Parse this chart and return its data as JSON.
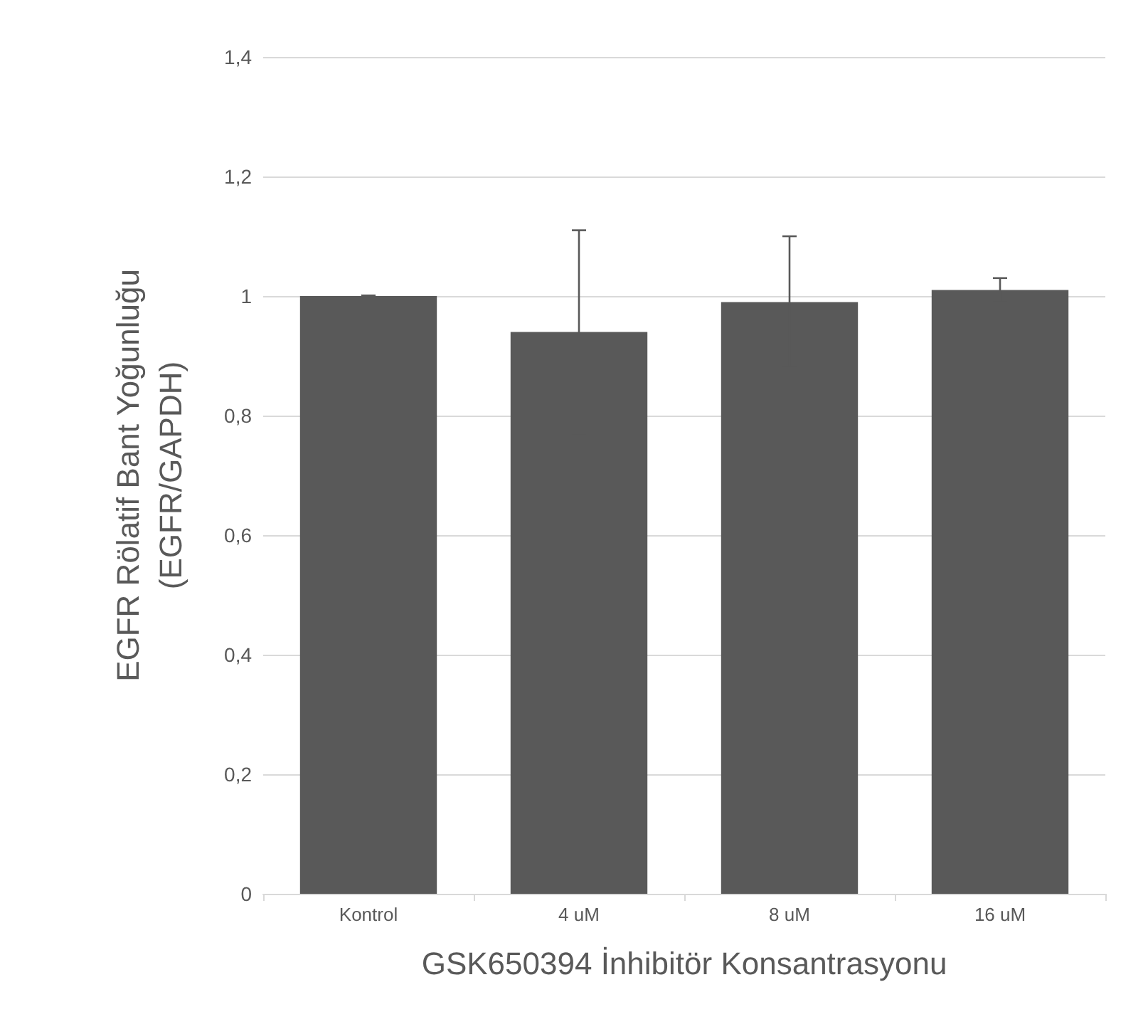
{
  "chart_data": {
    "type": "bar",
    "xlabel": "GSK650394 İnhibitör Konsantrasyonu",
    "ylabel": "EGFR Rölatif Bant Yoğunluğu\n(EGFR/GAPDH)",
    "categories": [
      "Kontrol",
      "4 uM",
      "8 uM",
      "16 uM"
    ],
    "values": [
      1.0,
      0.94,
      0.99,
      1.01
    ],
    "errors": [
      0.001,
      0.17,
      0.11,
      0.02
    ],
    "color": "#595959",
    "ylim": [
      0,
      1.4
    ],
    "yticks": [
      {
        "value": 0,
        "label": "0"
      },
      {
        "value": 0.2,
        "label": "0,2"
      },
      {
        "value": 0.4,
        "label": "0,4"
      },
      {
        "value": 0.6,
        "label": "0,6"
      },
      {
        "value": 0.8,
        "label": "0,8"
      },
      {
        "value": 1,
        "label": "1"
      },
      {
        "value": 1.2,
        "label": "1,2"
      },
      {
        "value": 1.4,
        "label": "1,4"
      }
    ],
    "grid": "y"
  }
}
